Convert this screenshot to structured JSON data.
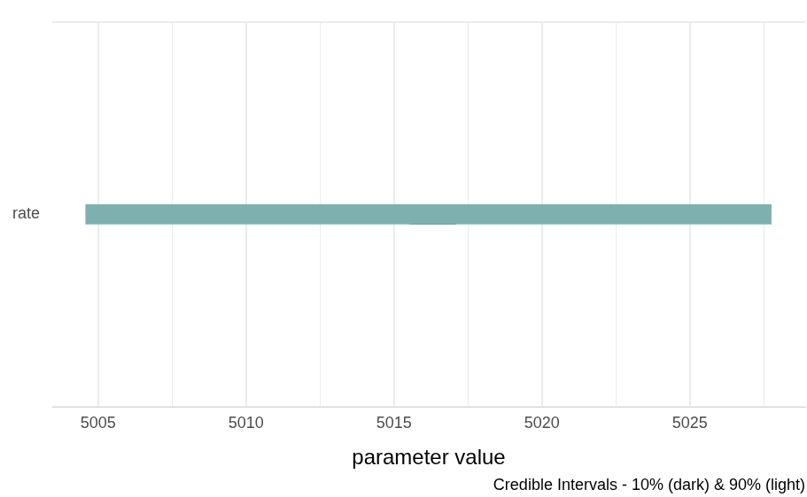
{
  "chart_data": {
    "type": "bar",
    "orientation": "horizontal",
    "xlabel": "parameter value",
    "caption": "Credible Intervals - 10% (dark) & 90% (light)",
    "categories": [
      "rate"
    ],
    "series": [
      {
        "color": "#7fb0b0",
        "values": [
          [
            5004.58,
            5027.75
          ]
        ]
      },
      {
        "color": "#262d5f",
        "values": [
          [
            5015.54,
            5017.09
          ]
        ]
      }
    ],
    "xlim": [
      5003.45,
      5028.9
    ],
    "xticks": [
      5005,
      5010,
      5015,
      5020,
      5025
    ],
    "grid": true
  }
}
